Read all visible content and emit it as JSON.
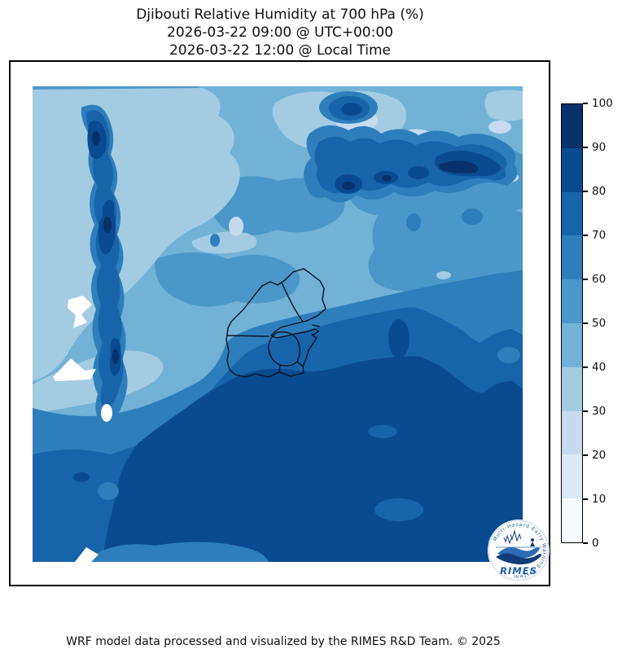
{
  "title": {
    "line1": "Djibouti Relative Humidity at 700 hPa (%)",
    "line2": "2026-03-22 09:00 @ UTC+00:00",
    "line3": "2026-03-22 12:00 @ Local Time"
  },
  "footer": {
    "credit": "WRF model data processed and visualized by the RIMES R&D Team. © 2025"
  },
  "logo": {
    "label": "RIMES",
    "ring_text": "Multi-Hazard Early Warning System",
    "colors": {
      "primary": "#1b5ea6",
      "dark": "#123c78",
      "mid": "#2e6db4",
      "bg": "#ffffff"
    }
  },
  "chart_data": {
    "type": "filled_contour_map",
    "title": "Djibouti Relative Humidity at 700 hPa (%)",
    "valid_time_utc": "2026-03-22 09:00 @ UTC+00:00",
    "valid_time_local": "2026-03-22 12:00 @ Local Time",
    "variable": "Relative Humidity",
    "pressure_level_hPa": 700,
    "units": "%",
    "region": "Djibouti and surroundings",
    "contour_levels": [
      0,
      10,
      20,
      30,
      40,
      50,
      60,
      70,
      80,
      90,
      100
    ],
    "band_colors": [
      "#f7fbff",
      "#dbe9f6",
      "#c6dbef",
      "#a3cce3",
      "#72b2d7",
      "#4b97c9",
      "#2e7ebc",
      "#1864aa",
      "#0a4a90",
      "#08306b"
    ],
    "mask_color": "#ffffff",
    "colorbar": {
      "position": "right",
      "ticks": [
        0,
        10,
        20,
        30,
        40,
        50,
        60,
        70,
        80,
        90,
        100
      ]
    },
    "map_overlay": {
      "boundary": "Djibouti national and regional borders",
      "color": "#0a1220"
    },
    "features": [
      {
        "area": "northwest quadrant",
        "humidity_pct": "30-50",
        "note": "broad light (drier) region"
      },
      {
        "area": "west, north-south ridge",
        "humidity_pct": "70-100",
        "note": "narrow moist ridge snaking vertically"
      },
      {
        "area": "north-center",
        "humidity_pct": "20-40",
        "note": "palest, driest patches"
      },
      {
        "area": "northeast",
        "humidity_pct": "70-100",
        "note": "zigzag moist band with dark cores"
      },
      {
        "area": "center (Djibouti borders)",
        "humidity_pct": "50-80",
        "note": "NW-to-SE moistening gradient across the country"
      },
      {
        "area": "south and southeast",
        "humidity_pct": "70-90",
        "note": "large very moist air mass"
      },
      {
        "area": "west edge spots",
        "humidity_pct": "no data",
        "note": "small white masked shapes"
      }
    ]
  }
}
